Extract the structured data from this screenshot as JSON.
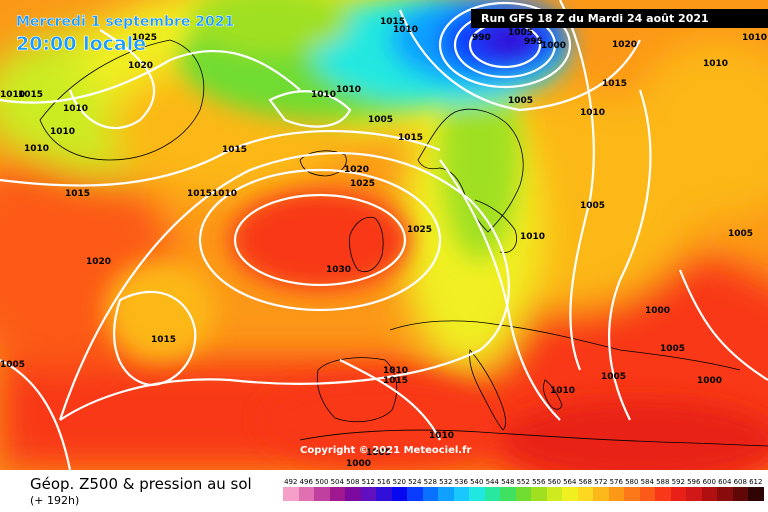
{
  "header": {
    "date": "Mercredi 1 septembre 2021",
    "time": "20:00 locale",
    "run": "Run GFS 18 Z du Mardi 24 août 2021",
    "copyright": "Copyright © 2021 Meteociel.fr"
  },
  "footer": {
    "title": "Géop. Z500 & pression au sol",
    "subtitle": "(+ 192h)"
  },
  "legend": [
    {
      "label": "492",
      "color": "#f5a0c8"
    },
    {
      "label": "496",
      "color": "#e070b0"
    },
    {
      "label": "500",
      "color": "#c040a0"
    },
    {
      "label": "504",
      "color": "#a01890"
    },
    {
      "label": "508",
      "color": "#7d0aa0"
    },
    {
      "label": "512",
      "color": "#6010c0"
    },
    {
      "label": "516",
      "color": "#3010d8"
    },
    {
      "label": "520",
      "color": "#0808f0"
    },
    {
      "label": "524",
      "color": "#0a3cff"
    },
    {
      "label": "528",
      "color": "#0a70ff"
    },
    {
      "label": "532",
      "color": "#10a0ff"
    },
    {
      "label": "536",
      "color": "#18c8ff"
    },
    {
      "label": "540",
      "color": "#20e8e0"
    },
    {
      "label": "544",
      "color": "#28e8a0"
    },
    {
      "label": "548",
      "color": "#40e060"
    },
    {
      "label": "552",
      "color": "#70dc30"
    },
    {
      "label": "556",
      "color": "#a0e020"
    },
    {
      "label": "560",
      "color": "#ccec20"
    },
    {
      "label": "564",
      "color": "#f0f020"
    },
    {
      "label": "568",
      "color": "#fcd820"
    },
    {
      "label": "572",
      "color": "#fcb818"
    },
    {
      "label": "576",
      "color": "#fc9818"
    },
    {
      "label": "580",
      "color": "#fc7818"
    },
    {
      "label": "584",
      "color": "#fc5a18"
    },
    {
      "label": "588",
      "color": "#f83818"
    },
    {
      "label": "592",
      "color": "#e82018"
    },
    {
      "label": "596",
      "color": "#d01818"
    },
    {
      "label": "600",
      "color": "#b01010"
    },
    {
      "label": "604",
      "color": "#880c0c"
    },
    {
      "label": "608",
      "color": "#600808"
    },
    {
      "label": "612",
      "color": "#300404"
    }
  ],
  "isobar_labels": [
    "1025",
    "1020",
    "1015",
    "1010",
    "1010",
    "1010",
    "1010",
    "1015",
    "1015",
    "1010",
    "1020",
    "1015",
    "1015",
    "1010",
    "1010",
    "1005",
    "1010",
    "1015",
    "1020",
    "1025",
    "1025",
    "1030",
    "1010",
    "1005",
    "1005",
    "1015",
    "990",
    "995",
    "1000",
    "1005",
    "1010",
    "1020",
    "1010",
    "1015",
    "1010",
    "1005",
    "1010",
    "1005",
    "1000",
    "1005",
    "1000",
    "1005",
    "1010",
    "1015",
    "1010",
    "1005",
    "1000"
  ]
}
